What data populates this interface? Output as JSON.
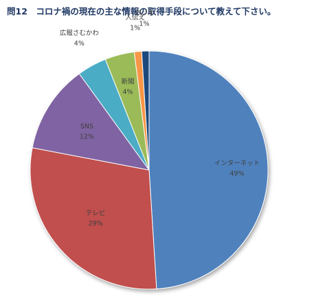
{
  "title": "問12　コロナ禍の現在の主な情報の取得手段について教えて下さい。",
  "chart_data": {
    "type": "pie",
    "title": "問12　コロナ禍の現在の主な情報の取得手段について教えて下さい。",
    "slices": [
      {
        "name": "インターネット",
        "value": 49,
        "label": "49%",
        "color": "#4F81BD"
      },
      {
        "name": "テレビ",
        "value": 29,
        "label": "29%",
        "color": "#C0504D"
      },
      {
        "name": "SNS",
        "value": 12,
        "label": "12%",
        "color": "#8064A2"
      },
      {
        "name": "広報さむかわ",
        "value": 4,
        "label": "4%",
        "color": "#4BACC6"
      },
      {
        "name": "新聞",
        "value": 4,
        "label": "4%",
        "color": "#9BBB59"
      },
      {
        "name": "人伝え",
        "value": 1,
        "label": "1%",
        "color": "#F79646"
      },
      {
        "name": "ラジオ",
        "value": 1,
        "label": "1%",
        "color": "#1F497D"
      }
    ],
    "start_angle_deg": 0,
    "direction": "clockwise"
  }
}
